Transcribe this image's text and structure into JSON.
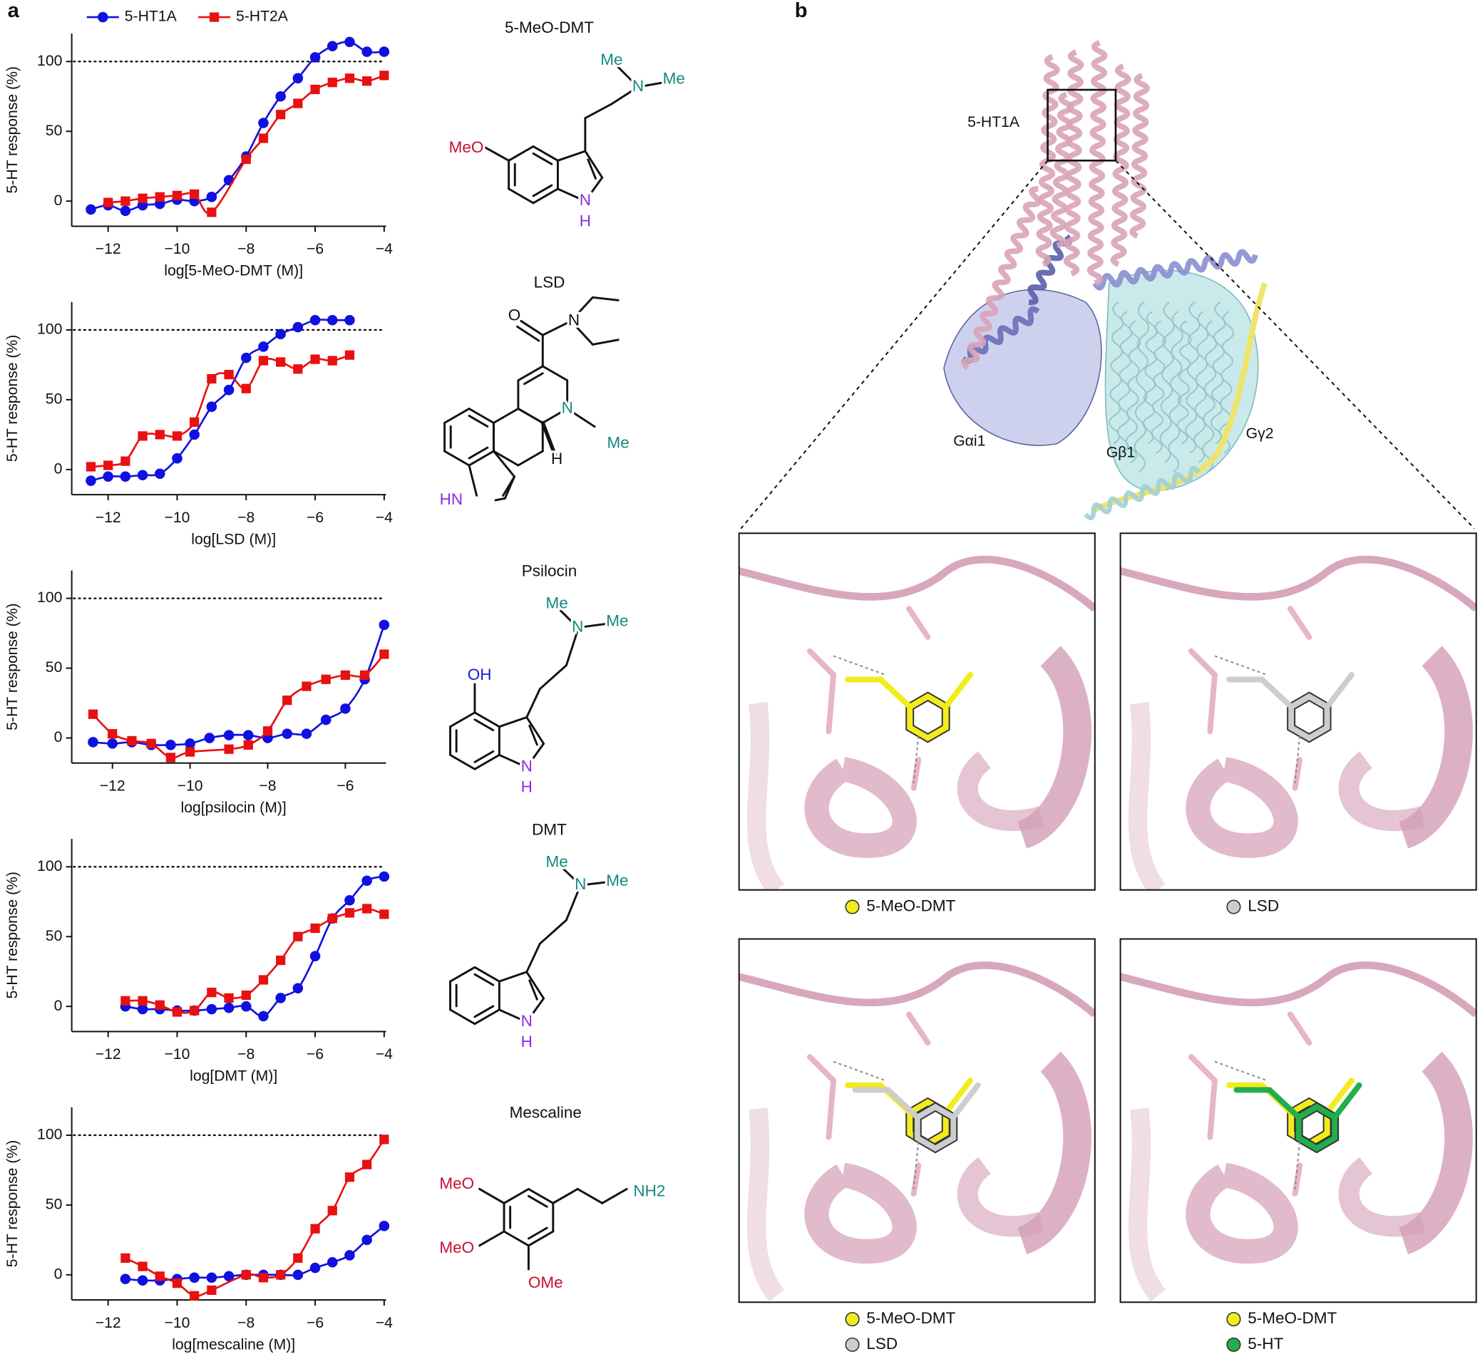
{
  "panel_a": {
    "label": "a"
  },
  "chart_data": [
    {
      "type": "scatter",
      "legend": true,
      "xlabel": "log[5-MeO-DMT (M)]",
      "ylabel": "5-HT response (%)",
      "xlim": [
        -13,
        -4
      ],
      "ylim": [
        -18,
        120
      ],
      "xticks": [
        {
          "value": -12,
          "label": "−12"
        },
        {
          "value": -10,
          "label": "−10"
        },
        {
          "value": -8,
          "label": "−8"
        },
        {
          "value": -6,
          "label": "−6"
        },
        {
          "value": -4,
          "label": "−4"
        }
      ],
      "yticks": [
        0,
        50,
        100
      ],
      "reference_line": 100,
      "series": [
        {
          "name": "5-HT1A",
          "color": "#1010e0",
          "marker": "circle",
          "x": [
            -12.5,
            -12,
            -11.5,
            -11,
            -10.5,
            -10,
            -9.5,
            -9,
            -8.5,
            -8,
            -7.5,
            -7,
            -6.5,
            -6,
            -5.5,
            -5,
            -4.5,
            -4
          ],
          "values": [
            -6,
            -3,
            -7,
            -3,
            -2,
            1,
            0,
            3,
            15,
            32,
            56,
            75,
            88,
            103,
            111,
            114,
            107,
            107
          ]
        },
        {
          "name": "5-HT2A",
          "color": "#e81010",
          "marker": "square",
          "x": [
            -12,
            -11.5,
            -11,
            -10.5,
            -10,
            -9.5,
            -9,
            -8,
            -7.5,
            -7,
            -6.5,
            -6,
            -5.5,
            -5,
            -4.5,
            -4
          ],
          "values": [
            -1,
            0,
            2,
            3,
            4,
            5,
            -8,
            30,
            45,
            62,
            70,
            80,
            85,
            88,
            86,
            90
          ]
        }
      ]
    },
    {
      "type": "scatter",
      "xlabel": "log[LSD (M)]",
      "ylabel": "5-HT response (%)",
      "xlim": [
        -13,
        -4
      ],
      "ylim": [
        -18,
        120
      ],
      "xticks": [
        {
          "value": -12,
          "label": "−12"
        },
        {
          "value": -10,
          "label": "−10"
        },
        {
          "value": -8,
          "label": "−8"
        },
        {
          "value": -6,
          "label": "−6"
        },
        {
          "value": -4,
          "label": "−4"
        }
      ],
      "yticks": [
        0,
        50,
        100
      ],
      "reference_line": 100,
      "series": [
        {
          "color": "#1010e0",
          "marker": "circle",
          "x": [
            -12.5,
            -12,
            -11.5,
            -11,
            -10.5,
            -10,
            -9.5,
            -9,
            -8.5,
            -8,
            -7.5,
            -7,
            -6.5,
            -6,
            -5.5,
            -5
          ],
          "values": [
            -8,
            -5,
            -5,
            -4,
            -3,
            8,
            25,
            45,
            57,
            80,
            88,
            97,
            102,
            107,
            107,
            107
          ]
        },
        {
          "color": "#e81010",
          "marker": "square",
          "x": [
            -12.5,
            -12,
            -11.5,
            -11,
            -10.5,
            -10,
            -9.5,
            -9,
            -8.5,
            -8,
            -7.5,
            -7,
            -6.5,
            -6,
            -5.5,
            -5
          ],
          "values": [
            2,
            3,
            6,
            24,
            25,
            24,
            34,
            65,
            68,
            58,
            78,
            77,
            72,
            79,
            78,
            82
          ]
        }
      ]
    },
    {
      "type": "scatter",
      "xlabel": "log[psilocin (M)]",
      "ylabel": "5-HT response (%)",
      "xlim": [
        -13,
        -5
      ],
      "ylim": [
        -18,
        120
      ],
      "xticks": [
        {
          "value": -12,
          "label": "−12"
        },
        {
          "value": -10,
          "label": "−10"
        },
        {
          "value": -8,
          "label": "−8"
        },
        {
          "value": -6,
          "label": "−6"
        }
      ],
      "yticks": [
        0,
        50,
        100
      ],
      "reference_line": 100,
      "series": [
        {
          "color": "#1010e0",
          "marker": "circle",
          "x": [
            -12.5,
            -12,
            -11.5,
            -11,
            -10.5,
            -10,
            -9.5,
            -9,
            -8.5,
            -8,
            -7.5,
            -7,
            -6.5,
            -6,
            -5.5,
            -5
          ],
          "values": [
            -3,
            -4,
            -3,
            -5,
            -5,
            -4,
            0,
            2,
            2,
            0,
            3,
            3,
            13,
            21,
            42,
            81
          ]
        },
        {
          "color": "#e81010",
          "marker": "square",
          "x": [
            -12.5,
            -12,
            -11.5,
            -11,
            -10.5,
            -10,
            -9,
            -8.5,
            -8,
            -7.5,
            -7,
            -6.5,
            -6,
            -5.5,
            -5
          ],
          "values": [
            17,
            3,
            -2,
            -4,
            -14,
            -10,
            -8,
            -5,
            5,
            27,
            37,
            42,
            45,
            45,
            60
          ]
        }
      ]
    },
    {
      "type": "scatter",
      "xlabel": "log[DMT (M)]",
      "ylabel": "5-HT response (%)",
      "xlim": [
        -13,
        -4
      ],
      "ylim": [
        -18,
        120
      ],
      "xticks": [
        {
          "value": -12,
          "label": "−12"
        },
        {
          "value": -10,
          "label": "−10"
        },
        {
          "value": -8,
          "label": "−8"
        },
        {
          "value": -6,
          "label": "−6"
        },
        {
          "value": -4,
          "label": "−4"
        }
      ],
      "yticks": [
        0,
        50,
        100
      ],
      "reference_line": 100,
      "series": [
        {
          "color": "#1010e0",
          "marker": "circle",
          "x": [
            -11.5,
            -11,
            -10.5,
            -10,
            -9.5,
            -9,
            -8.5,
            -8,
            -7.5,
            -7,
            -6.5,
            -6,
            -5.5,
            -5,
            -4.5,
            -4
          ],
          "values": [
            0,
            -2,
            -2,
            -3,
            -3,
            -2,
            -1,
            0,
            -7,
            6,
            13,
            36,
            63,
            76,
            90,
            93
          ]
        },
        {
          "color": "#e81010",
          "marker": "square",
          "x": [
            -11.5,
            -11,
            -10.5,
            -10,
            -9.5,
            -9,
            -8.5,
            -8,
            -7.5,
            -7,
            -6.5,
            -6,
            -5.5,
            -5,
            -4.5,
            -4
          ],
          "values": [
            4,
            4,
            1,
            -4,
            -3,
            10,
            6,
            8,
            19,
            33,
            50,
            56,
            63,
            67,
            70,
            66
          ]
        }
      ]
    },
    {
      "type": "scatter",
      "xlabel": "log[mescaline (M)]",
      "ylabel": "5-HT response (%)",
      "xlim": [
        -13,
        -4
      ],
      "ylim": [
        -18,
        120
      ],
      "xticks": [
        {
          "value": -12,
          "label": "−12"
        },
        {
          "value": -10,
          "label": "−10"
        },
        {
          "value": -8,
          "label": "−8"
        },
        {
          "value": -6,
          "label": "−6"
        },
        {
          "value": -4,
          "label": "−4"
        }
      ],
      "yticks": [
        0,
        50,
        100
      ],
      "reference_line": 100,
      "series": [
        {
          "color": "#1010e0",
          "marker": "circle",
          "x": [
            -11.5,
            -11,
            -10.5,
            -10,
            -9.5,
            -9,
            -8.5,
            -8,
            -7.5,
            -7,
            -6.5,
            -6,
            -5.5,
            -5,
            -4.5,
            -4
          ],
          "values": [
            -3,
            -4,
            -4,
            -3,
            -2,
            -2,
            -1,
            0,
            0,
            0,
            0,
            5,
            9,
            14,
            25,
            35
          ]
        },
        {
          "color": "#e81010",
          "marker": "square",
          "x": [
            -11.5,
            -11,
            -10.5,
            -10,
            -9.5,
            -9,
            -8,
            -7.5,
            -7,
            -6.5,
            -6,
            -5.5,
            -5,
            -4.5,
            -4
          ],
          "values": [
            12,
            6,
            -1,
            -6,
            -15,
            -11,
            0,
            -2,
            0,
            12,
            33,
            46,
            70,
            79,
            97
          ]
        }
      ]
    }
  ],
  "structures": [
    {
      "name": "5-MeO-DMT",
      "atoms": [
        {
          "label": "Me",
          "color": "#14897f"
        },
        {
          "label": "N",
          "color": "#14897f"
        },
        {
          "label": "Me",
          "color": "#14897f"
        },
        {
          "label": "MeO",
          "color": "#c8102e"
        },
        {
          "label": "N",
          "color": "#8a2be2"
        },
        {
          "label": "H",
          "color": "#8a2be2"
        }
      ]
    },
    {
      "name": "LSD",
      "atoms": [
        {
          "label": "O",
          "color": "#111111"
        },
        {
          "label": "N",
          "color": "#111111"
        },
        {
          "label": "N",
          "color": "#14897f"
        },
        {
          "label": "Me",
          "color": "#14897f"
        },
        {
          "label": "H",
          "color": "#111111"
        },
        {
          "label": "HN",
          "color": "#8a2be2"
        }
      ]
    },
    {
      "name": "Psilocin",
      "atoms": [
        {
          "label": "Me",
          "color": "#14897f"
        },
        {
          "label": "N",
          "color": "#14897f"
        },
        {
          "label": "Me",
          "color": "#14897f"
        },
        {
          "label": "OH",
          "color": "#1a1ad0"
        },
        {
          "label": "N",
          "color": "#8a2be2"
        },
        {
          "label": "H",
          "color": "#8a2be2"
        }
      ]
    },
    {
      "name": "DMT",
      "atoms": [
        {
          "label": "Me",
          "color": "#14897f"
        },
        {
          "label": "N",
          "color": "#14897f"
        },
        {
          "label": "Me",
          "color": "#14897f"
        },
        {
          "label": "N",
          "color": "#8a2be2"
        },
        {
          "label": "H",
          "color": "#8a2be2"
        }
      ]
    },
    {
      "name": "Mescaline",
      "atoms": [
        {
          "label": "MeO",
          "color": "#c8102e"
        },
        {
          "label": "MeO",
          "color": "#c8102e"
        },
        {
          "label": "OMe",
          "color": "#c8102e"
        },
        {
          "label": "NH2",
          "color": "#14897f"
        }
      ]
    }
  ],
  "panel_b": {
    "label": "b",
    "protein_labels": [
      "5-HT1A",
      "Gαi1",
      "Gβ1",
      "Gγ2"
    ],
    "views": [
      {
        "legend": [
          {
            "label": "5-MeO-DMT",
            "color": "#f3ec1c"
          }
        ]
      },
      {
        "legend": [
          {
            "label": "LSD",
            "color": "#cdcdcd"
          }
        ]
      },
      {
        "legend": [
          {
            "label": "5-MeO-DMT",
            "color": "#f3ec1c"
          },
          {
            "label": "LSD",
            "color": "#cdcdcd"
          }
        ]
      },
      {
        "legend": [
          {
            "label": "5-MeO-DMT",
            "color": "#f3ec1c"
          },
          {
            "label": "5-HT",
            "color": "#22ae4c"
          }
        ]
      }
    ]
  }
}
